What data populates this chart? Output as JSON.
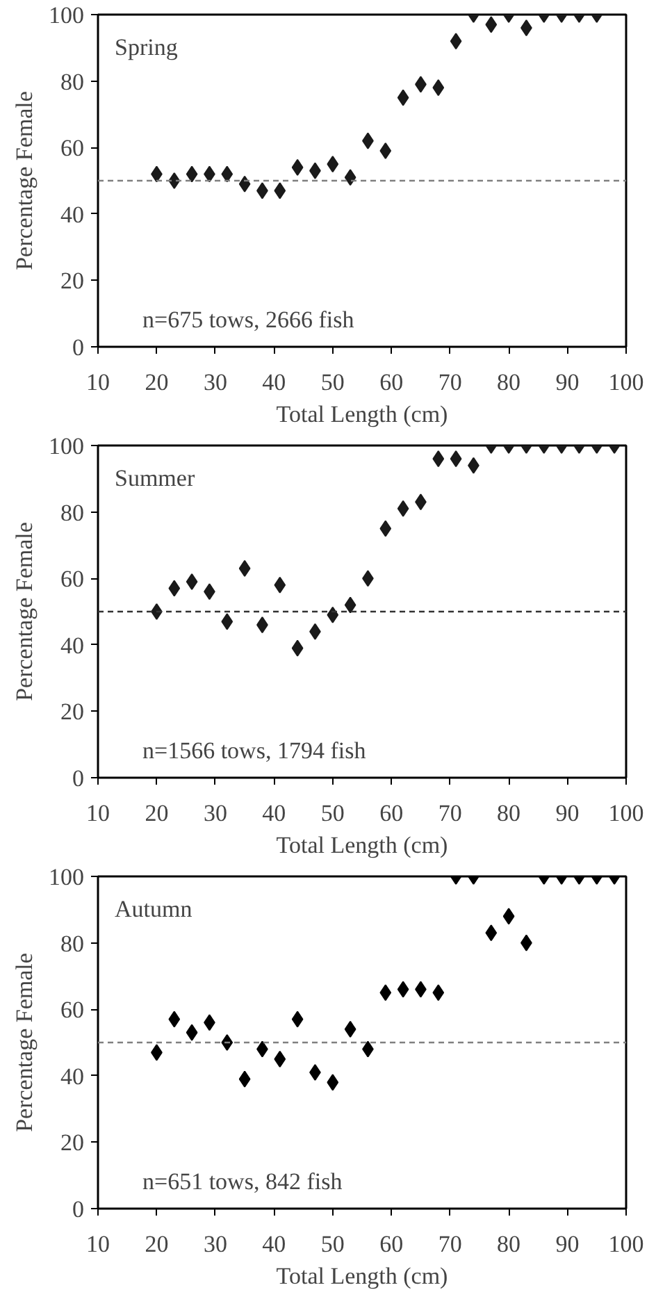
{
  "chart_data": [
    {
      "type": "scatter",
      "xlabel": "Total Length (cm)",
      "ylabel": "Percentage Female",
      "annotations": [
        "Spring",
        "n=675 tows, 2666 fish"
      ],
      "x": [
        20,
        23,
        26,
        29,
        32,
        35,
        38,
        41,
        44,
        47,
        50,
        53,
        56,
        59,
        62,
        65,
        68,
        71,
        74,
        77,
        80,
        83,
        86,
        89,
        92,
        95
      ],
      "series": [
        {
          "color": "#1a1a1a",
          "values": [
            52,
            50,
            52,
            52,
            52,
            49,
            47,
            47,
            54,
            53,
            55,
            51,
            62,
            59,
            75,
            79,
            78,
            92,
            100,
            97,
            100,
            96,
            100,
            100,
            100,
            100
          ]
        }
      ],
      "xlim": [
        10,
        100
      ],
      "xticks": [
        10,
        20,
        30,
        40,
        50,
        60,
        70,
        80,
        90,
        100
      ],
      "ylim": [
        0,
        100
      ],
      "yticks": [
        0,
        20,
        40,
        60,
        80,
        100
      ],
      "marker": "diamond",
      "grid": false,
      "ref_lines": [
        {
          "axis": "y",
          "value": 50,
          "color": "#808080",
          "line_style": "dashed"
        }
      ]
    },
    {
      "type": "scatter",
      "xlabel": "Total Length (cm)",
      "ylabel": "Percentage Female",
      "annotations": [
        "Summer",
        "n=1566 tows, 1794 fish"
      ],
      "x": [
        20,
        23,
        26,
        29,
        32,
        35,
        38,
        41,
        44,
        47,
        50,
        53,
        56,
        59,
        62,
        65,
        68,
        71,
        74,
        77,
        80,
        83,
        86,
        89,
        92,
        95,
        98
      ],
      "series": [
        {
          "color": "#1a1a1a",
          "values": [
            50,
            57,
            59,
            56,
            47,
            63,
            46,
            58,
            39,
            44,
            49,
            52,
            60,
            75,
            81,
            83,
            96,
            96,
            94,
            100,
            100,
            100,
            100,
            100,
            100,
            100,
            100
          ]
        }
      ],
      "xlim": [
        10,
        100
      ],
      "xticks": [
        10,
        20,
        30,
        40,
        50,
        60,
        70,
        80,
        90,
        100
      ],
      "ylim": [
        0,
        100
      ],
      "yticks": [
        0,
        20,
        40,
        60,
        80,
        100
      ],
      "marker": "diamond",
      "grid": false,
      "ref_lines": [
        {
          "axis": "y",
          "value": 50,
          "color": "#333333",
          "line_style": "dashed"
        }
      ]
    },
    {
      "type": "scatter",
      "xlabel": "Total Length (cm)",
      "ylabel": "Percentage Female",
      "annotations": [
        "Autumn",
        "n=651 tows, 842 fish"
      ],
      "x": [
        20,
        23,
        26,
        29,
        32,
        35,
        38,
        41,
        44,
        47,
        50,
        53,
        56,
        59,
        62,
        65,
        68,
        71,
        74,
        77,
        80,
        83,
        86,
        89,
        92,
        95,
        98
      ],
      "series": [
        {
          "color": "#000000",
          "values": [
            47,
            57,
            53,
            56,
            50,
            39,
            48,
            45,
            57,
            41,
            38,
            54,
            48,
            65,
            66,
            66,
            65,
            100,
            100,
            83,
            88,
            80,
            100,
            100,
            100,
            100,
            100
          ]
        }
      ],
      "xlim": [
        10,
        100
      ],
      "xticks": [
        10,
        20,
        30,
        40,
        50,
        60,
        70,
        80,
        90,
        100
      ],
      "ylim": [
        0,
        100
      ],
      "yticks": [
        0,
        20,
        40,
        60,
        80,
        100
      ],
      "marker": "diamond",
      "grid": false,
      "ref_lines": [
        {
          "axis": "y",
          "value": 50,
          "color": "#808080",
          "line_style": "dashed"
        }
      ]
    }
  ]
}
